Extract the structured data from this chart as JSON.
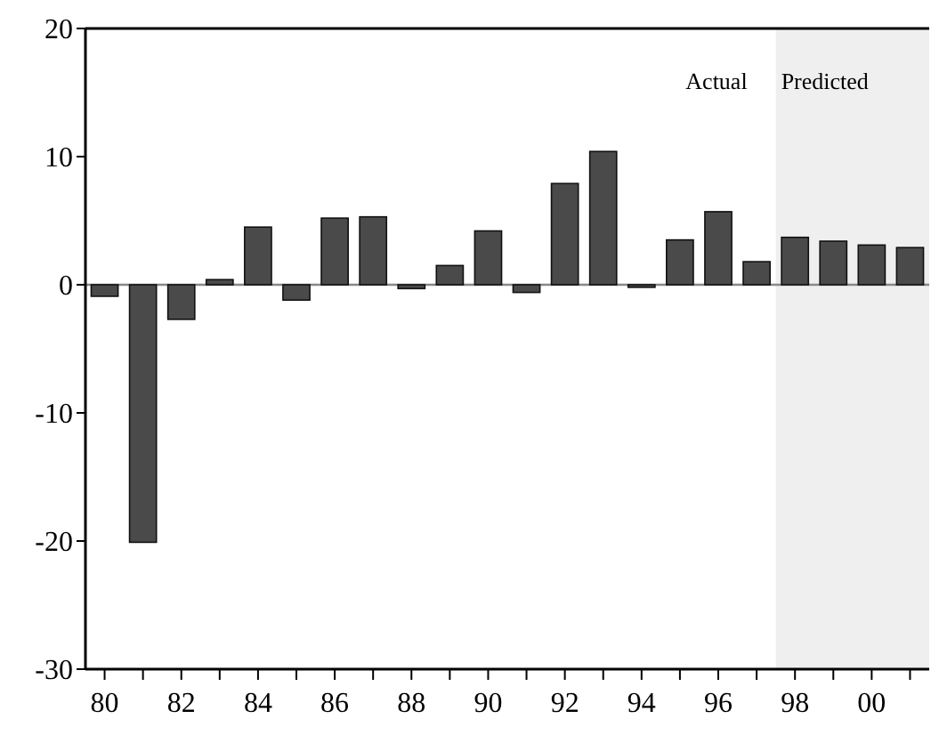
{
  "chart_data": {
    "type": "bar",
    "x": [
      1980,
      1981,
      1982,
      1983,
      1984,
      1985,
      1986,
      1987,
      1988,
      1989,
      1990,
      1991,
      1992,
      1993,
      1994,
      1995,
      1996,
      1997,
      1998,
      1999,
      2000,
      2001
    ],
    "values": [
      -0.9,
      -20.1,
      -2.7,
      0.4,
      4.5,
      -1.2,
      5.2,
      5.3,
      -0.3,
      1.5,
      4.2,
      -0.6,
      7.9,
      10.4,
      -0.2,
      3.5,
      5.7,
      1.8,
      3.7,
      3.4,
      3.1,
      2.9
    ],
    "color": "#4a4a4a",
    "xlim": [
      1979.5,
      2001.5
    ],
    "xticks": [
      {
        "value": 1980,
        "label": "80"
      },
      {
        "value": 1981,
        "label": null
      },
      {
        "value": 1982,
        "label": "82"
      },
      {
        "value": 1983,
        "label": null
      },
      {
        "value": 1984,
        "label": "84"
      },
      {
        "value": 1985,
        "label": null
      },
      {
        "value": 1986,
        "label": "86"
      },
      {
        "value": 1987,
        "label": null
      },
      {
        "value": 1988,
        "label": "88"
      },
      {
        "value": 1989,
        "label": null
      },
      {
        "value": 1990,
        "label": "90"
      },
      {
        "value": 1991,
        "label": null
      },
      {
        "value": 1992,
        "label": "92"
      },
      {
        "value": 1993,
        "label": null
      },
      {
        "value": 1994,
        "label": "94"
      },
      {
        "value": 1995,
        "label": null
      },
      {
        "value": 1996,
        "label": "96"
      },
      {
        "value": 1997,
        "label": null
      },
      {
        "value": 1998,
        "label": "98"
      },
      {
        "value": 1999,
        "label": null
      },
      {
        "value": 2000,
        "label": "00"
      },
      {
        "value": 2001,
        "label": null
      }
    ],
    "ylim": [
      -30,
      20
    ],
    "yticks": [
      -30,
      -20,
      -10,
      0,
      10,
      20
    ],
    "ref_lines": [
      {
        "axis": "y",
        "value": 0,
        "color": "#888888"
      }
    ],
    "bands": [
      {
        "axis": "x",
        "from": 1997.5,
        "to": 2001.5,
        "label": "Predicted",
        "color": "#efefef"
      }
    ],
    "annotations": [
      "Actual"
    ]
  }
}
